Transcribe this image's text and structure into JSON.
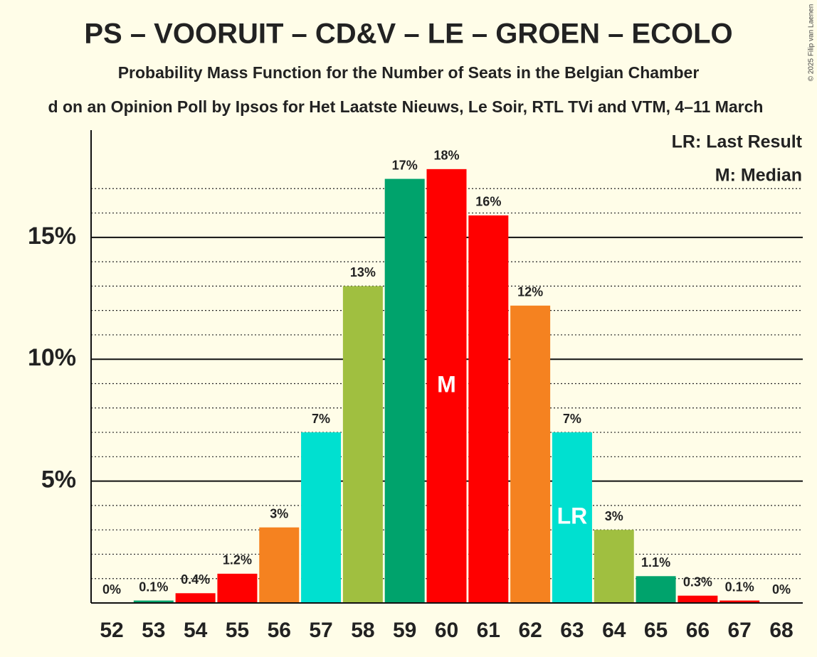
{
  "chart_data": {
    "type": "bar",
    "title": "PS – VOORUIT – CD&V – LE – GROEN – ECOLO",
    "subtitle": "Probability Mass Function for the Number of Seats in the Belgian Chamber",
    "subtitle2": "d on an Opinion Poll by Ipsos for Het Laatste Nieuws, Le Soir, RTL TVi and VTM, 4–11 March",
    "copyright": "© 2025 Filip van Laenen",
    "legend": [
      "LR: Last Result",
      "M: Median"
    ],
    "categories": [
      "52",
      "53",
      "54",
      "55",
      "56",
      "57",
      "58",
      "59",
      "60",
      "61",
      "62",
      "63",
      "64",
      "65",
      "66",
      "67",
      "68"
    ],
    "values": [
      0,
      0.1,
      0.4,
      1.2,
      3.1,
      7.0,
      13.0,
      17.4,
      17.8,
      15.9,
      12.2,
      7.0,
      3.0,
      1.1,
      0.3,
      0.1,
      0
    ],
    "value_labels": [
      "0%",
      "0.1%",
      "0.4%",
      "1.2%",
      "3%",
      "7%",
      "13%",
      "17%",
      "18%",
      "16%",
      "12%",
      "7%",
      "3%",
      "1.1%",
      "0.3%",
      "0.1%",
      "0%"
    ],
    "colors": [
      "#a0bf40",
      "#00a36c",
      "#ff0000",
      "#ff0000",
      "#f58220",
      "#00e0d0",
      "#a0bf40",
      "#00a36c",
      "#ff0000",
      "#ff0000",
      "#f58220",
      "#00e0d0",
      "#a0bf40",
      "#00a36c",
      "#ff0000",
      "#ff0000",
      "#f58220"
    ],
    "annotations": [
      {
        "index": 8,
        "text": "M"
      },
      {
        "index": 11,
        "text": "LR"
      }
    ],
    "ylim": [
      0,
      19.4
    ],
    "yticks": [
      {
        "value": 5,
        "label": "5%"
      },
      {
        "value": 10,
        "label": "10%"
      },
      {
        "value": 15,
        "label": "15%"
      }
    ],
    "minor_yticks": [
      1,
      2,
      3,
      4,
      6,
      7,
      8,
      9,
      11,
      12,
      13,
      14,
      16,
      17
    ],
    "grid": true
  }
}
